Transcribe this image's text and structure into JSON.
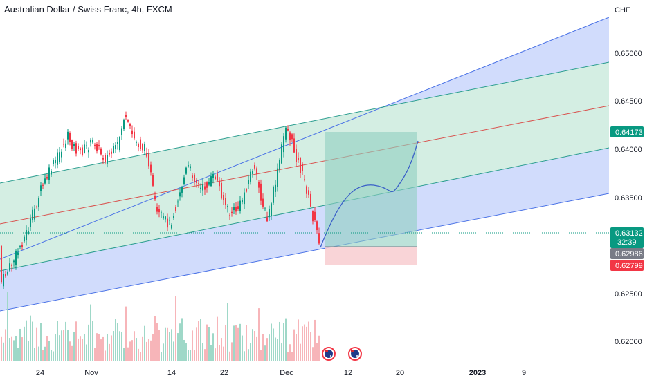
{
  "header": {
    "title": "Australian Dollar / Swiss Franc, 4h, FXCM"
  },
  "chart_data": {
    "type": "candlestick",
    "symbol": "AUDCHF",
    "timeframe": "4h",
    "currency_unit": "CHF",
    "y_ticks": [
      "0.65000",
      "0.64500",
      "0.64000",
      "0.63500",
      "0.63000",
      "0.62500",
      "0.62000"
    ],
    "y_tick_values": [
      0.65,
      0.645,
      0.64,
      0.635,
      0.63,
      0.625,
      0.62
    ],
    "x_ticks": [
      "24",
      "Nov",
      "14",
      "22",
      "Dec",
      "12",
      "20",
      "2023",
      "9"
    ],
    "price_tags": {
      "target": {
        "value": "0.64173",
        "color": "#089981"
      },
      "current": {
        "value": "0.63132",
        "countdown": "32:39",
        "color": "#089981"
      },
      "entry": {
        "value": "0.62986",
        "color": "#787b86"
      },
      "stop": {
        "value": "0.62799",
        "color": "#f23645"
      }
    },
    "position": {
      "type": "long",
      "entry": 0.62986,
      "target": 0.64173,
      "stop": 0.62799
    },
    "channel": {
      "type": "parallel-channel-with-median"
    },
    "events": [
      "australia-flag-icon",
      "australia-flag-icon"
    ],
    "colors": {
      "up": "#089981",
      "down": "#f23645",
      "channel_fill": "#c9d6fb",
      "inner_fill": "#d4eee3",
      "channel_line": "#4a72e6",
      "inner_line": "#2a9d8f",
      "median_line": "#d9534f",
      "profit_zone": "#8fcfc0",
      "loss_zone": "#f8c9cd"
    }
  }
}
